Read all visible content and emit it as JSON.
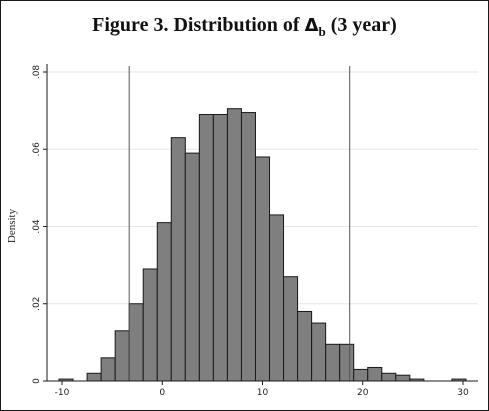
{
  "chart_data": {
    "type": "bar",
    "title": {
      "prefix": "Figure 3.  Distribution of ",
      "symbol": "Δ",
      "subscript": "b",
      "suffix": " (3 year)"
    },
    "xlabel": "",
    "ylabel": "Density",
    "xlim": [
      -11.5,
      31.5
    ],
    "ylim": [
      0,
      0.08
    ],
    "x_ticks": [
      -10,
      0,
      10,
      20,
      30
    ],
    "x_tick_labels": [
      "-10",
      "0",
      "10",
      "20",
      "30"
    ],
    "y_ticks": [
      0,
      0.02,
      0.04,
      0.06,
      0.08
    ],
    "y_tick_labels": [
      "0",
      ".02",
      ".04",
      ".06",
      ".08"
    ],
    "grid": true,
    "bin_width": 1.4,
    "bins": [
      {
        "x0": -10.3,
        "density": 0.0005
      },
      {
        "x0": -7.5,
        "density": 0.002
      },
      {
        "x0": -6.1,
        "density": 0.006
      },
      {
        "x0": -4.7,
        "density": 0.013
      },
      {
        "x0": -3.3,
        "density": 0.02
      },
      {
        "x0": -1.9,
        "density": 0.029
      },
      {
        "x0": -0.5,
        "density": 0.041
      },
      {
        "x0": 0.9,
        "density": 0.063
      },
      {
        "x0": 2.3,
        "density": 0.059
      },
      {
        "x0": 3.7,
        "density": 0.069
      },
      {
        "x0": 5.1,
        "density": 0.069
      },
      {
        "x0": 6.5,
        "density": 0.0705
      },
      {
        "x0": 7.9,
        "density": 0.0695
      },
      {
        "x0": 9.3,
        "density": 0.058
      },
      {
        "x0": 10.7,
        "density": 0.043
      },
      {
        "x0": 12.1,
        "density": 0.027
      },
      {
        "x0": 13.5,
        "density": 0.018
      },
      {
        "x0": 14.9,
        "density": 0.015
      },
      {
        "x0": 16.3,
        "density": 0.0095
      },
      {
        "x0": 17.7,
        "density": 0.0095
      },
      {
        "x0": 19.1,
        "density": 0.003
      },
      {
        "x0": 20.5,
        "density": 0.0035
      },
      {
        "x0": 21.9,
        "density": 0.002
      },
      {
        "x0": 23.3,
        "density": 0.0015
      },
      {
        "x0": 24.7,
        "density": 0.0005
      },
      {
        "x0": 28.9,
        "density": 0.0005
      }
    ],
    "reference_lines_x": [
      -3.3,
      18.7
    ],
    "colors": {
      "bar_fill": "#7f7f7f",
      "bar_stroke": "#1a1a1a",
      "grid": "#e6e6e6",
      "reference_line": "#555555"
    }
  }
}
